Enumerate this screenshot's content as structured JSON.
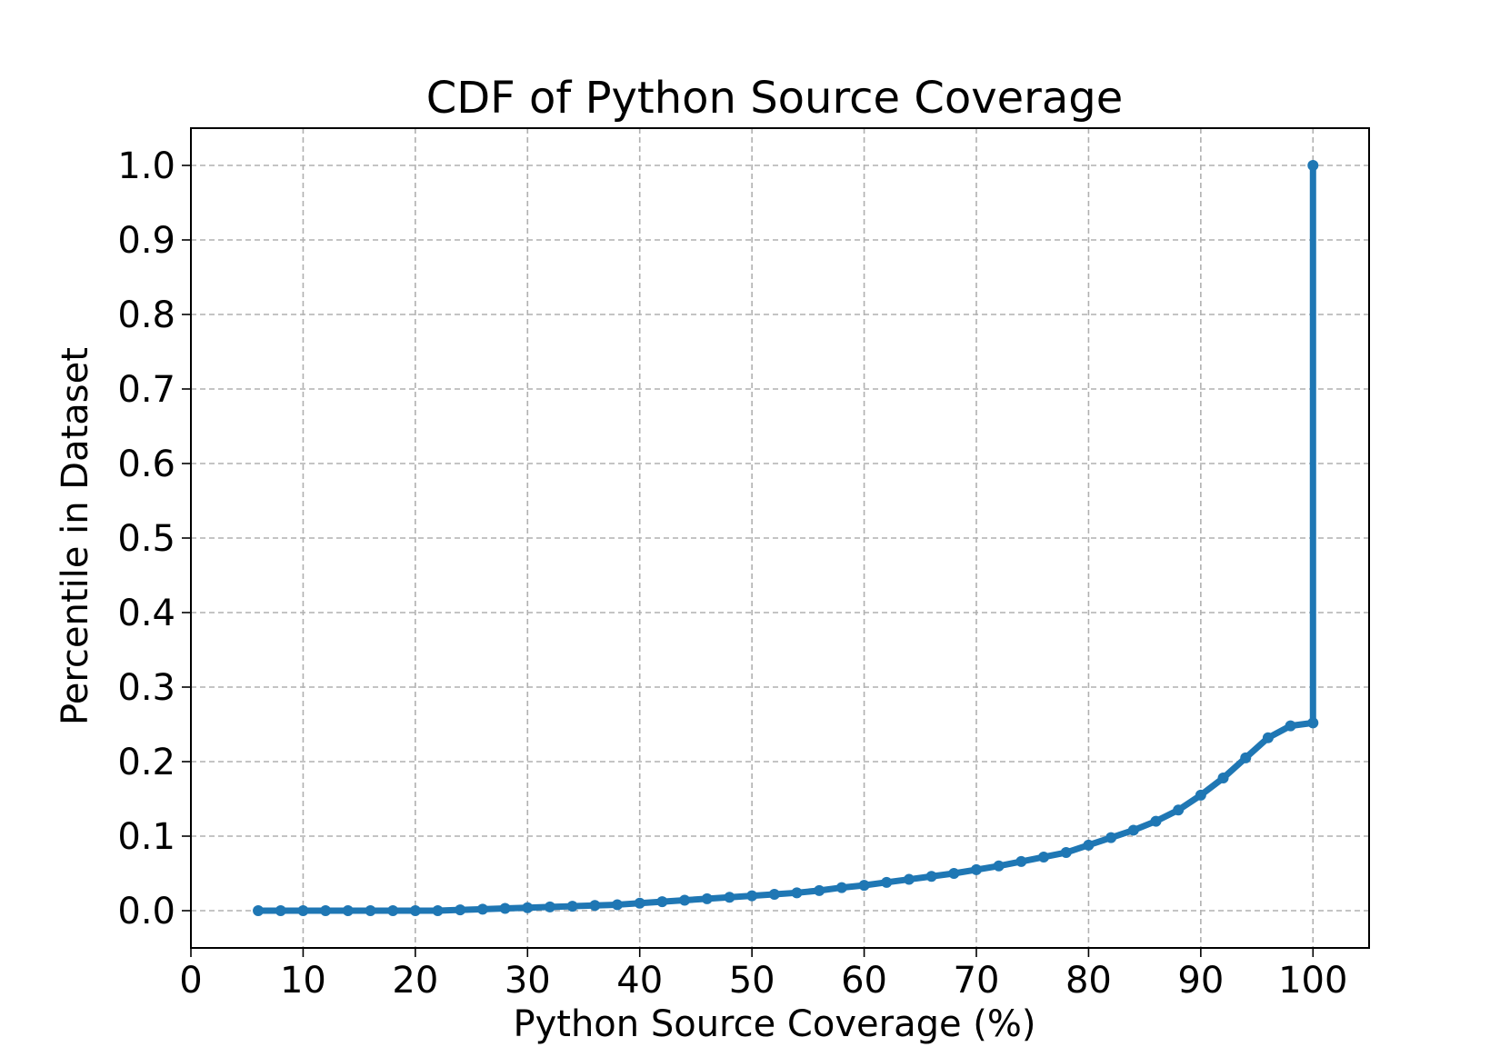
{
  "chart_data": {
    "type": "line",
    "title": "CDF of Python Source Coverage",
    "xlabel": "Python Source Coverage (%)",
    "ylabel": "Percentile in Dataset",
    "xlim": [
      0,
      105
    ],
    "ylim": [
      -0.05,
      1.05
    ],
    "xticks": [
      0,
      10,
      20,
      30,
      40,
      50,
      60,
      70,
      80,
      90,
      100
    ],
    "xtick_labels": [
      "0",
      "10",
      "20",
      "30",
      "40",
      "50",
      "60",
      "70",
      "80",
      "90",
      "100"
    ],
    "yticks": [
      0.0,
      0.1,
      0.2,
      0.3,
      0.4,
      0.5,
      0.6,
      0.7,
      0.8,
      0.9,
      1.0
    ],
    "ytick_labels": [
      "0.0",
      "0.1",
      "0.2",
      "0.3",
      "0.4",
      "0.5",
      "0.6",
      "0.7",
      "0.8",
      "0.9",
      "1.0"
    ],
    "grid": true,
    "series": [
      {
        "name": "CDF",
        "color": "#1f77b4",
        "marker": "dot",
        "x": [
          6,
          8,
          10,
          12,
          14,
          16,
          18,
          20,
          22,
          24,
          26,
          28,
          30,
          32,
          34,
          36,
          38,
          40,
          42,
          44,
          46,
          48,
          50,
          52,
          54,
          56,
          58,
          60,
          62,
          64,
          66,
          68,
          70,
          72,
          74,
          76,
          78,
          80,
          82,
          84,
          86,
          88,
          90,
          92,
          94,
          96,
          98,
          100,
          100
        ],
        "y": [
          0.0,
          0.0,
          0.0,
          0.0,
          0.0,
          0.0,
          0.0,
          0.0,
          0.0,
          0.001,
          0.002,
          0.003,
          0.004,
          0.005,
          0.006,
          0.007,
          0.008,
          0.01,
          0.012,
          0.014,
          0.016,
          0.018,
          0.02,
          0.022,
          0.024,
          0.027,
          0.031,
          0.034,
          0.038,
          0.042,
          0.046,
          0.05,
          0.055,
          0.06,
          0.066,
          0.072,
          0.078,
          0.088,
          0.098,
          0.108,
          0.12,
          0.135,
          0.155,
          0.178,
          0.205,
          0.232,
          0.248,
          0.252,
          1.0
        ]
      }
    ]
  }
}
